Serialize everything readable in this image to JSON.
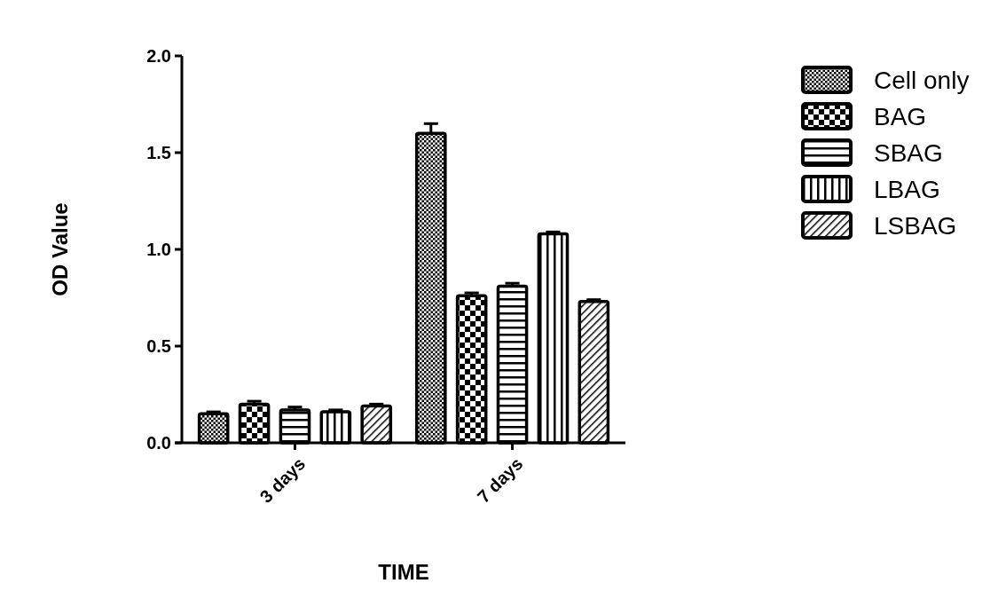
{
  "chart_data": {
    "type": "bar",
    "xlabel": "TIME",
    "ylabel": "OD Value",
    "categories": [
      "3 days",
      "7 days"
    ],
    "series": [
      {
        "name": "Cell only",
        "color": "#000000",
        "values": [
          0.15,
          1.6
        ],
        "errors": [
          0.01,
          0.05
        ]
      },
      {
        "name": "BAG",
        "color": "#000000",
        "values": [
          0.2,
          0.76
        ],
        "errors": [
          0.015,
          0.015
        ]
      },
      {
        "name": "SBAG",
        "color": "#000000",
        "values": [
          0.17,
          0.81
        ],
        "errors": [
          0.015,
          0.015
        ]
      },
      {
        "name": "LBAG",
        "color": "#000000",
        "values": [
          0.16,
          1.08
        ],
        "errors": [
          0.01,
          0.01
        ]
      },
      {
        "name": "LSBAG",
        "color": "#000000",
        "values": [
          0.19,
          0.73
        ],
        "errors": [
          0.01,
          0.01
        ]
      }
    ],
    "ylim": [
      0,
      2
    ],
    "yticks": [
      {
        "value": 0,
        "label": "0.0"
      },
      {
        "value": 0.5,
        "label": "0.5"
      },
      {
        "value": 1,
        "label": "1.0"
      },
      {
        "value": 1.5,
        "label": "1.5"
      },
      {
        "value": 2,
        "label": "2.0"
      }
    ],
    "legend": "right",
    "grid": false
  }
}
